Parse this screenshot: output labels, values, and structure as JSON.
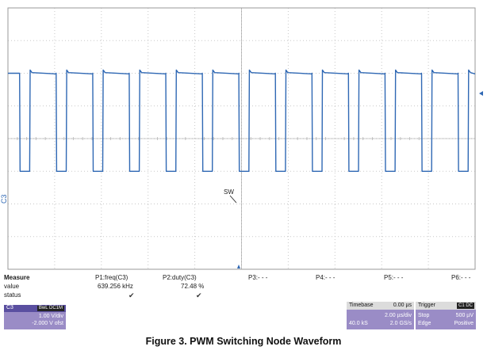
{
  "scope": {
    "colors": {
      "grid_border": "#9a9a9a",
      "grid_dot": "#c8c8c8",
      "trace": "#2f68b4",
      "marker": "#2f68b4"
    },
    "channel_label": "C3",
    "trace_label": "SW",
    "trigger_marker_icon": "triangle-up-icon"
  },
  "chart_data": {
    "type": "line",
    "title": "",
    "xlabel": "",
    "ylabel": "",
    "x_unit": "µs",
    "xlim": [
      -10,
      10
    ],
    "ylim": [
      -4,
      4
    ],
    "series": [
      {
        "label": "C3",
        "period_us": 1.5643,
        "duty": 0.7248,
        "high_level_div": 2.0,
        "low_level_div": -1.0,
        "first_falling_edge_us": -9.5
      }
    ]
  },
  "measure": {
    "header": "Measure",
    "row_value": "value",
    "row_status": "status",
    "params": [
      {
        "name": "P1:freq(C3)",
        "value": "639.256 kHz",
        "status": "✔"
      },
      {
        "name": "P2:duty(C3)",
        "value": "72.48 %",
        "status": "✔"
      },
      {
        "name": "P3:- - -",
        "value": "",
        "status": ""
      },
      {
        "name": "P4:- - -",
        "value": "",
        "status": ""
      },
      {
        "name": "P5:- - -",
        "value": "",
        "status": ""
      },
      {
        "name": "P6:- - -",
        "value": "",
        "status": ""
      }
    ]
  },
  "channel": {
    "name": "C3",
    "badge": "BwL DC1M",
    "vdiv": "1.00 V/div",
    "offset": "-2.000 V ofst"
  },
  "timebase": {
    "label": "Timebase",
    "delay": "0.00 µs",
    "tdiv": "2.00 µs/div",
    "samples": "40.0 kS",
    "rate": "2.0 GS/s"
  },
  "trigger": {
    "label": "Trigger",
    "badge": "C1 DC",
    "mode": "Stop",
    "level": "500 µV",
    "type": "Edge",
    "slope": "Positive"
  },
  "caption": "Figure 3. PWM Switching Node Waveform"
}
